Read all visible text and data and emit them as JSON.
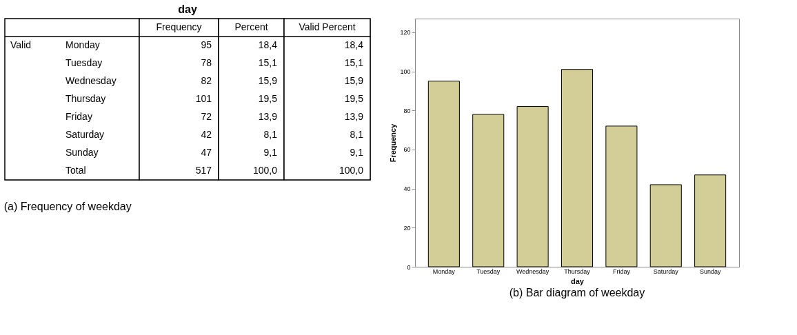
{
  "chart_data": [
    {
      "type": "other",
      "title": "day",
      "annotations": [
        "Valid",
        "(a) Frequency of weekday"
      ],
      "categories": [
        "Frequency",
        "Percent",
        "Valid Percent"
      ],
      "y_categories": [
        "Monday",
        "Tuesday",
        "Wednesday",
        "Thursday",
        "Friday",
        "Saturday",
        "Sunday",
        "Total"
      ],
      "cell_labels": [
        [
          "95",
          "18,4",
          "18,4"
        ],
        [
          "78",
          "15,1",
          "15,1"
        ],
        [
          "82",
          "15,9",
          "15,9"
        ],
        [
          "101",
          "19,5",
          "19,5"
        ],
        [
          "72",
          "13,9",
          "13,9"
        ],
        [
          "42",
          "8,1",
          "8,1"
        ],
        [
          "47",
          "9,1",
          "9,1"
        ],
        [
          "517",
          "100,0",
          "100,0"
        ]
      ]
    },
    {
      "type": "bar",
      "categories": [
        "Monday",
        "Tuesday",
        "Wednesday",
        "Thursday",
        "Friday",
        "Saturday",
        "Sunday"
      ],
      "values": [
        95,
        78,
        82,
        101,
        72,
        42,
        47
      ],
      "color": "#d3ce97",
      "xlabel": "day",
      "ylabel": "Frequency",
      "ylim": [
        0,
        127
      ],
      "yticks": [
        0,
        20,
        40,
        60,
        80,
        100,
        120
      ],
      "grid": false,
      "annotations": [
        "(b) Bar diagram of weekday"
      ]
    }
  ]
}
